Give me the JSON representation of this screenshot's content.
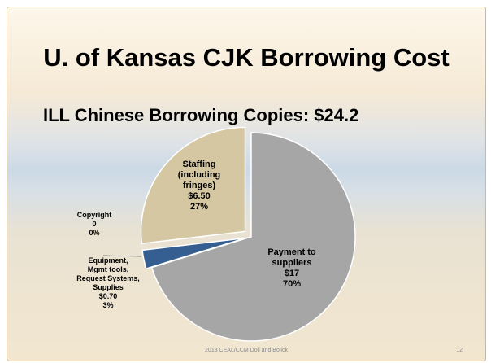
{
  "slide": {
    "title": "U. of Kansas CJK Borrowing Cost",
    "subtitle": "ILL  Chinese Borrowing Copies: $24.2",
    "footer": "2013 CEAL/CCM Doll and Bolick",
    "page_number": "12"
  },
  "chart_data": {
    "type": "pie",
    "title": "",
    "slices": [
      {
        "key": "payment",
        "label_lines": [
          "Payment to",
          "suppliers",
          "$17",
          "70%"
        ],
        "value": 17,
        "percent": 70,
        "color": "#a6a6a6"
      },
      {
        "key": "equipment",
        "label_lines": [
          "Equipment,",
          "Mgmt tools,",
          "Request Systems,",
          "Supplies",
          "$0.70",
          "3%"
        ],
        "value": 0.7,
        "percent": 3,
        "color": "#365f91"
      },
      {
        "key": "copyright",
        "label_lines": [
          "Copyright",
          "0",
          "0%"
        ],
        "value": 0,
        "percent": 0,
        "color": "#cfcfcf"
      },
      {
        "key": "staffing",
        "label_lines": [
          "Staffing",
          "(including",
          "fringes)",
          "$6.50",
          "27%"
        ],
        "value": 6.5,
        "percent": 27,
        "color": "#d5c7a2"
      }
    ]
  }
}
